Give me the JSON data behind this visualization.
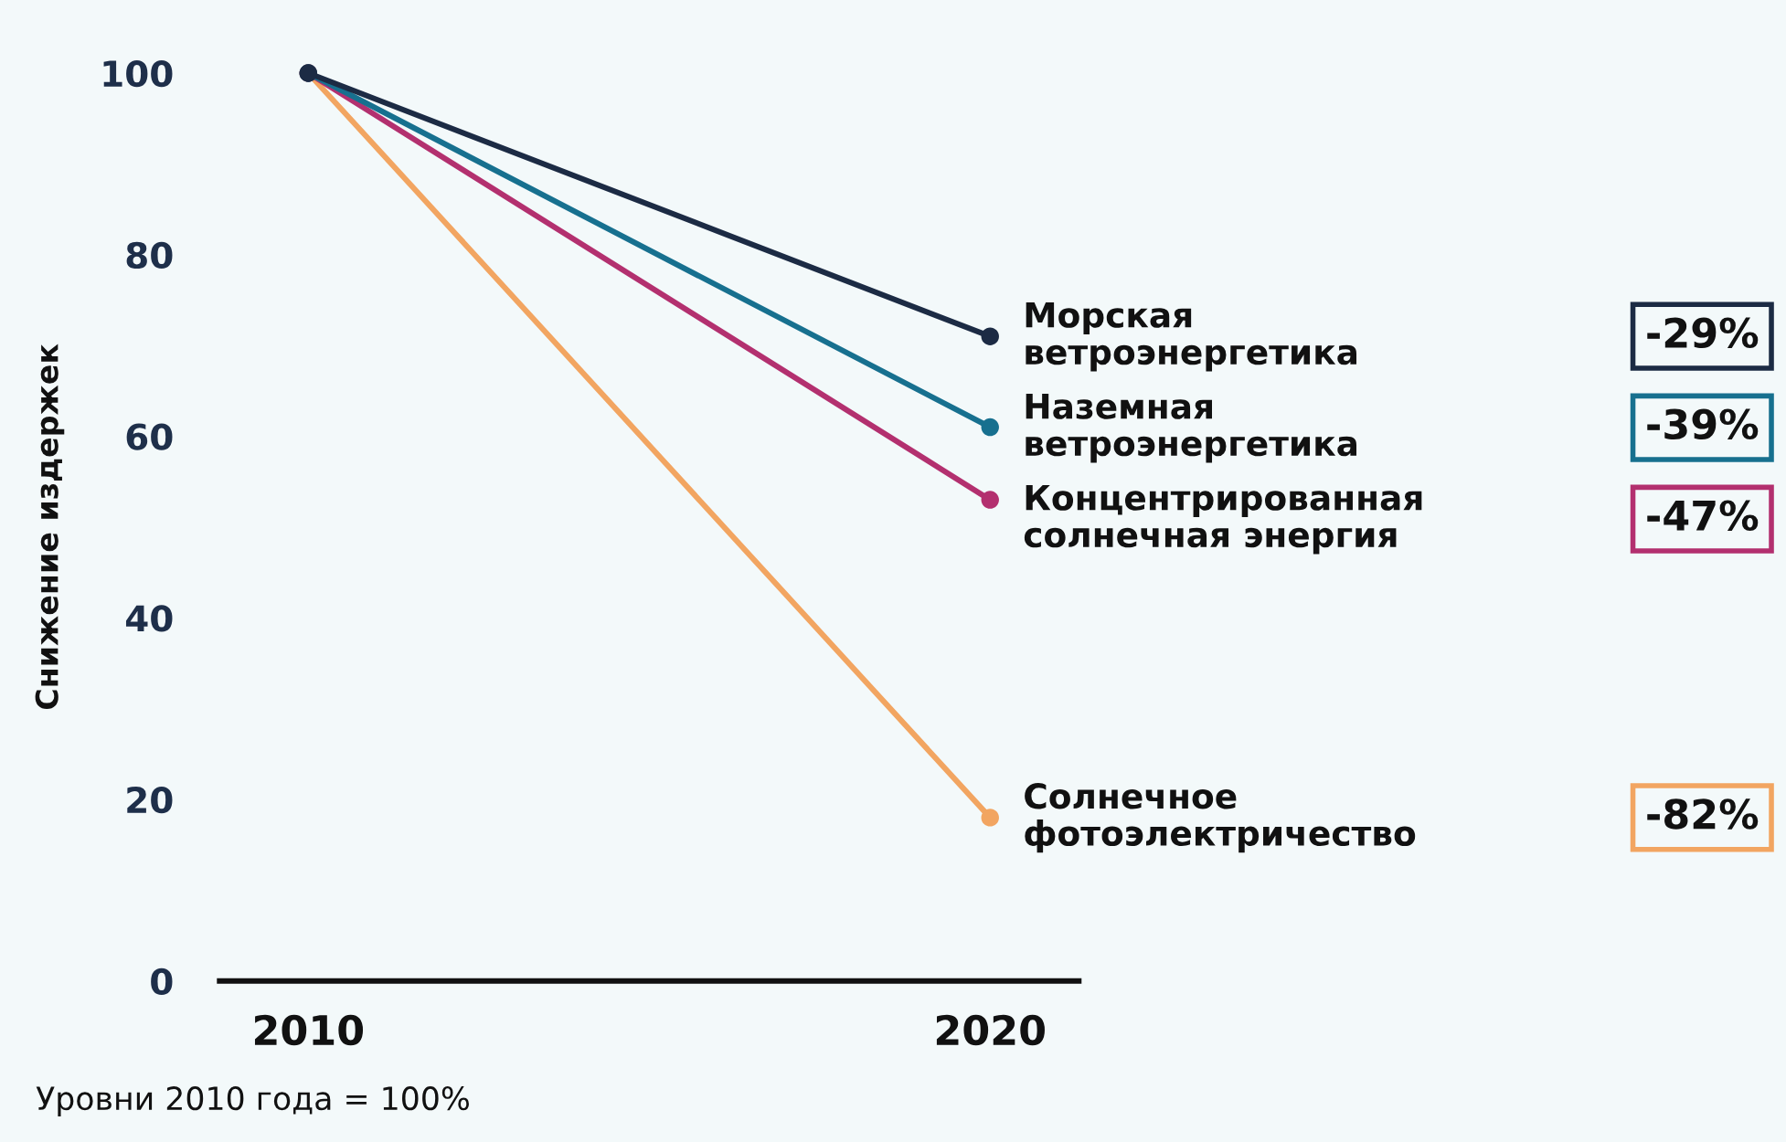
{
  "chart_data": {
    "type": "line",
    "ylabel": "Снижение издержек",
    "x": [
      2010,
      2020
    ],
    "xlim": [
      2008.7,
      2021.3
    ],
    "xticks": [
      2010,
      2020
    ],
    "ylim": [
      0,
      100
    ],
    "yticks": [
      0,
      20,
      40,
      60,
      80,
      100
    ],
    "marker": "circle",
    "line_style": "solid",
    "series": [
      {
        "name": "Морская\nветроэнергетика",
        "color": "#1c2b44",
        "values": [
          100,
          71
        ]
      },
      {
        "name": "Наземная\nветроэнергетика",
        "color": "#17708f",
        "values": [
          100,
          61
        ]
      },
      {
        "name": "Концентрированная\nсолнечная энергия",
        "color": "#b3306f",
        "values": [
          100,
          53
        ]
      },
      {
        "name": "Солнечное\nфотоэлектричество",
        "color": "#f2a561",
        "values": [
          100,
          18
        ]
      }
    ],
    "annotations": [
      "-29%",
      "-39%",
      "-47%",
      "-82%",
      "Уровни 2010 года = 100%"
    ]
  }
}
